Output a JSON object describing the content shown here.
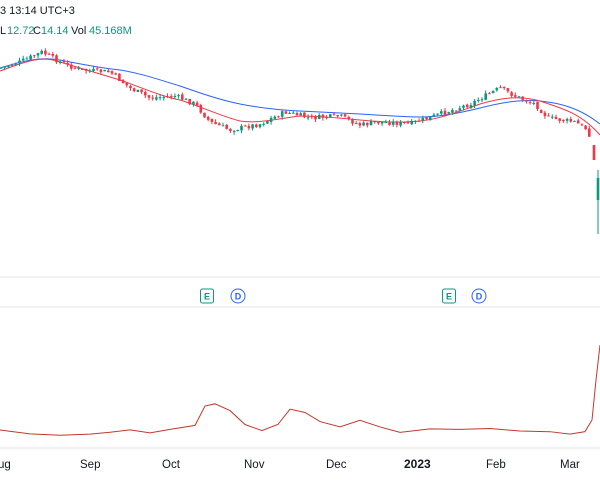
{
  "header": {
    "time_text": "3 13:14 UTC+3",
    "low_label": "L",
    "low_value": "12.72",
    "close_label": "C",
    "close_value": "14.14",
    "vol_label": "Vol",
    "vol_value": "45.168M"
  },
  "event_markers": [
    {
      "letter": "E",
      "x_month": "Oct",
      "kind": "earnings"
    },
    {
      "letter": "D",
      "x_month": "Oct",
      "kind": "dividend"
    },
    {
      "letter": "E",
      "x_month": "2023",
      "kind": "earnings"
    },
    {
      "letter": "D",
      "x_month": "2023",
      "kind": "dividend"
    }
  ],
  "chart_data": {
    "type": "candlestick",
    "x_tick_labels": [
      "ug",
      "Sep",
      "Oct",
      "Nov",
      "Dec",
      "2023",
      "Feb",
      "Mar"
    ],
    "grid": false,
    "colors": {
      "up": "#089981",
      "down": "#f23645",
      "ma_fast": "#f23645",
      "ma_slow": "#2962ff",
      "volume_line": "#c0392b"
    },
    "price_series": {
      "name": "",
      "approx_close_trend": [
        {
          "period": "Aug",
          "value": 30.5
        },
        {
          "period": "early Sep",
          "value": 29.0
        },
        {
          "period": "late Sep",
          "value": 27.0
        },
        {
          "period": "Oct",
          "value": 24.5
        },
        {
          "period": "Nov",
          "value": 25.8
        },
        {
          "period": "Dec",
          "value": 25.0
        },
        {
          "period": "Jan",
          "value": 26.0
        },
        {
          "period": "early Feb",
          "value": 28.5
        },
        {
          "period": "late Feb",
          "value": 26.0
        },
        {
          "period": "Mar",
          "value": 14.14
        }
      ]
    },
    "volume_series": {
      "name": "Vol",
      "last_value": "45.168M"
    }
  }
}
